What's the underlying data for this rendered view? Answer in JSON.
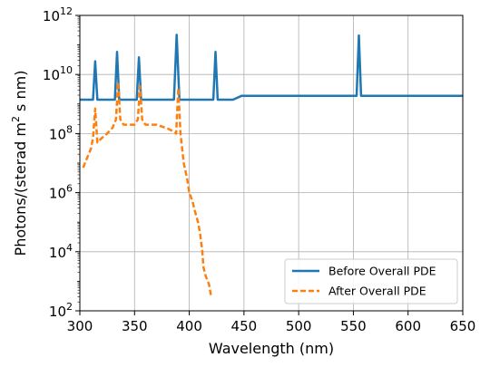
{
  "chart_data": {
    "type": "line",
    "xlabel": "Wavelength (nm)",
    "ylabel_parts": {
      "pre": "Photons/(sterad m",
      "sup": "2",
      "post": " s nm)"
    },
    "xlim": [
      300,
      650
    ],
    "ylim_log10": [
      2,
      12
    ],
    "y_scale": "log",
    "grid": true,
    "legend_position": "lower-right",
    "x_ticks": [
      300,
      350,
      400,
      450,
      500,
      550,
      600,
      650
    ],
    "y_ticks": [
      {
        "base": "10",
        "exp": "2",
        "value": 2
      },
      {
        "base": "10",
        "exp": "4",
        "value": 4
      },
      {
        "base": "10",
        "exp": "6",
        "value": 6
      },
      {
        "base": "10",
        "exp": "8",
        "value": 8
      },
      {
        "base": "10",
        "exp": "10",
        "value": 10
      },
      {
        "base": "10",
        "exp": "12",
        "value": 12
      }
    ],
    "series": [
      {
        "name": "Before Overall PDE",
        "color": "#1f77b4",
        "style": "solid",
        "x": [
          300,
          312,
          314,
          316,
          332,
          334,
          336,
          352,
          354,
          356,
          386,
          388.5,
          391,
          422,
          424,
          426,
          428,
          440,
          448,
          450,
          550,
          553,
          555,
          557,
          560,
          650
        ],
        "y": [
          1400000000.0,
          1400000000.0,
          28000000000.0,
          1400000000.0,
          1400000000.0,
          58000000000.0,
          1400000000.0,
          1400000000.0,
          38000000000.0,
          1400000000.0,
          1400000000.0,
          220000000000.0,
          1400000000.0,
          1400000000.0,
          58000000000.0,
          1400000000.0,
          1400000000.0,
          1400000000.0,
          1900000000.0,
          1900000000.0,
          1900000000.0,
          1900000000.0,
          210000000000.0,
          1900000000.0,
          1900000000.0,
          1900000000.0
        ]
      },
      {
        "name": "After Overall PDE",
        "color": "#ff7f0e",
        "style": "dashed",
        "x": [
          303,
          307,
          310,
          312,
          314,
          316,
          320,
          325,
          330,
          333,
          335,
          337,
          340,
          350,
          353,
          355,
          357,
          360,
          370,
          380,
          385,
          388,
          390,
          392,
          395,
          398,
          400,
          403,
          405,
          408,
          410,
          412,
          413,
          415,
          418,
          420
        ],
        "y": [
          7000000.0,
          16000000.0,
          30000000.0,
          70000000.0,
          700000000.0,
          50000000.0,
          70000000.0,
          100000000.0,
          160000000.0,
          300000000.0,
          5500000000.0,
          300000000.0,
          200000000.0,
          200000000.0,
          300000000.0,
          4000000000.0,
          300000000.0,
          200000000.0,
          200000000.0,
          150000000.0,
          120000000.0,
          100000000.0,
          3500000000.0,
          100000000.0,
          10000000.0,
          3000000.0,
          1000000.0,
          500000.0,
          250000.0,
          100000.0,
          40000.0,
          10000.0,
          3000.0,
          1500.0,
          800.0,
          300.0
        ]
      }
    ]
  }
}
